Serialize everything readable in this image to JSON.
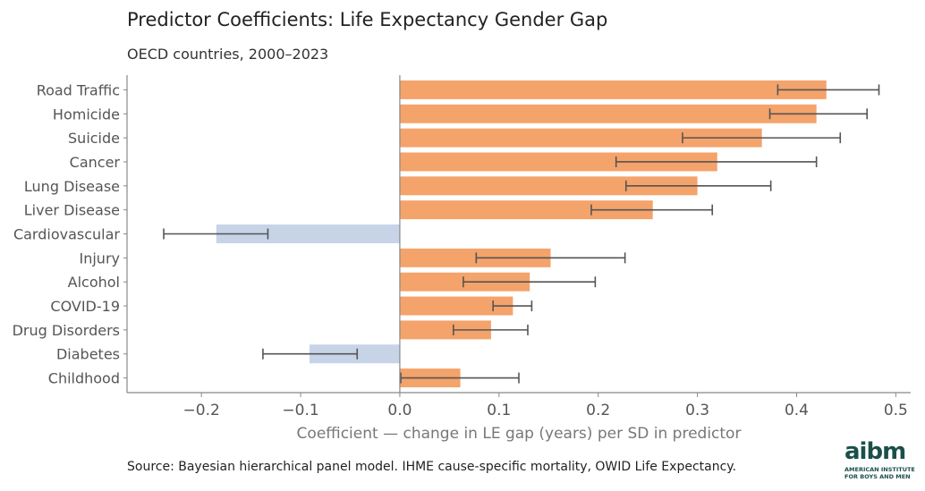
{
  "header": {
    "title": "Predictor Coefficients: Life Expectancy Gender Gap",
    "subtitle": "OECD countries, 2000–2023"
  },
  "footer": {
    "source": "Source: Bayesian hierarchical panel model. IHME cause-specific mortality, OWID Life Expectancy."
  },
  "logo": {
    "wordmark": "aibm",
    "line1": "AMERICAN INSTITUTE",
    "line2": "FOR BOYS AND MEN"
  },
  "colors": {
    "positive": "#f4a36b",
    "negative": "#c7d3e7",
    "error_bar": "#555555",
    "axis": "#888888",
    "tick_text": "#555555"
  },
  "chart_data": {
    "type": "bar",
    "orientation": "horizontal",
    "title": "Predictor Coefficients: Life Expectancy Gender Gap",
    "subtitle": "OECD countries, 2000–2023",
    "xlabel": "Coefficient — change in LE gap (years) per SD in predictor",
    "ylabel": "",
    "xlim": [
      -0.275,
      0.515
    ],
    "xticks": [
      -0.2,
      -0.1,
      0.0,
      0.1,
      0.2,
      0.3,
      0.4,
      0.5
    ],
    "xtick_labels": [
      "−0.2",
      "−0.1",
      "0.0",
      "0.1",
      "0.2",
      "0.3",
      "0.4",
      "0.5"
    ],
    "grid": false,
    "categories": [
      "Road Traffic",
      "Homicide",
      "Suicide",
      "Cancer",
      "Lung Disease",
      "Liver Disease",
      "Cardiovascular",
      "Injury",
      "Alcohol",
      "COVID-19",
      "Drug Disorders",
      "Diabetes",
      "Childhood"
    ],
    "values": [
      0.43,
      0.42,
      0.365,
      0.32,
      0.3,
      0.255,
      -0.185,
      0.152,
      0.131,
      0.114,
      0.092,
      -0.091,
      0.061
    ],
    "error_low": [
      0.381,
      0.373,
      0.285,
      0.218,
      0.228,
      0.193,
      -0.238,
      0.077,
      0.064,
      0.094,
      0.054,
      -0.138,
      0.001
    ],
    "error_high": [
      0.483,
      0.471,
      0.444,
      0.42,
      0.374,
      0.315,
      -0.133,
      0.227,
      0.197,
      0.133,
      0.129,
      -0.043,
      0.12
    ]
  }
}
